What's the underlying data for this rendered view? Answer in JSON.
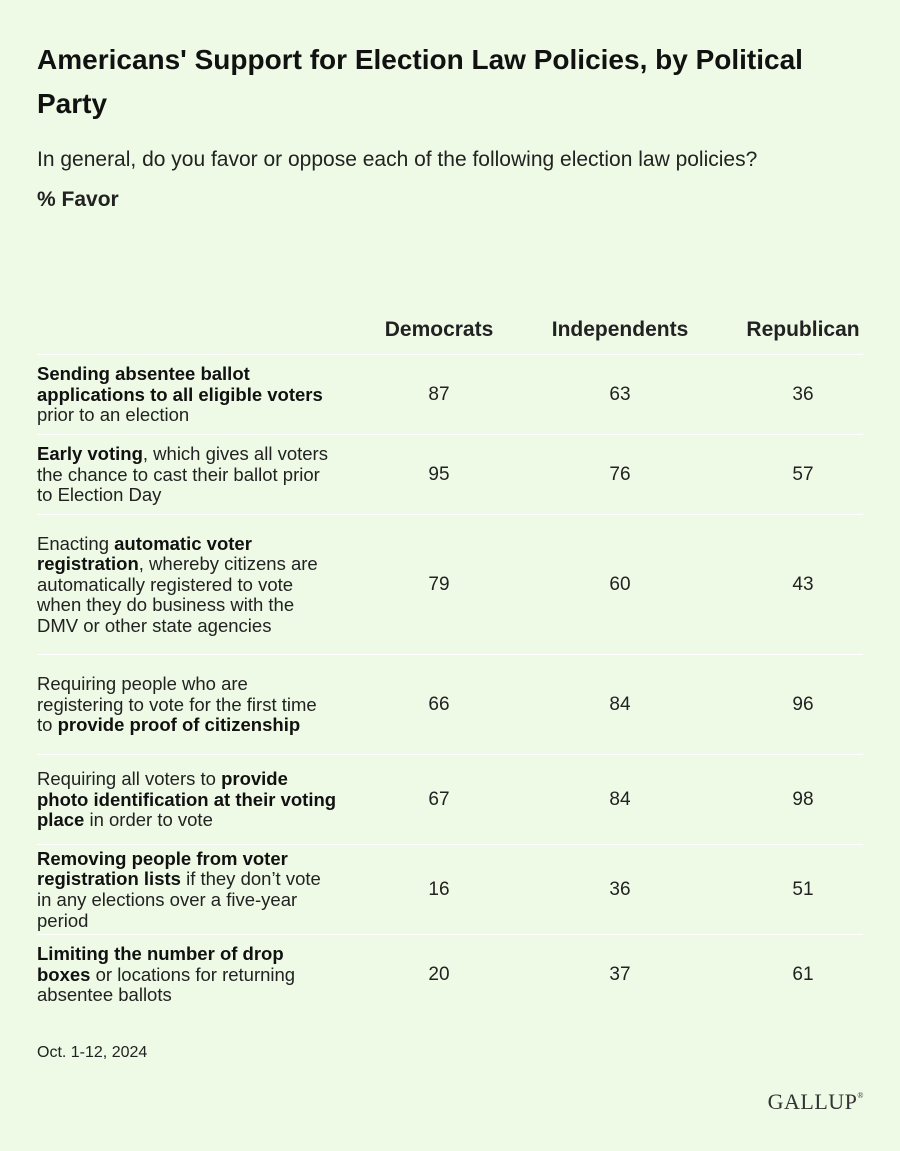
{
  "title": "Americans' Support for Election Law Policies, by Political Party",
  "subtitle": "In general, do you favor or oppose each of the following election law policies?",
  "unit_label": "% Favor",
  "footnote": "Oct. 1-12, 2024",
  "logo": "GALLUP",
  "chart_data": {
    "type": "table",
    "columns": [
      "Democrats",
      "Independents",
      "Republican"
    ],
    "rows": [
      {
        "label_parts": [
          {
            "text": "Sending absentee ballot applications to all eligible voters",
            "bold": true
          },
          {
            "text": " prior to an election",
            "bold": false
          }
        ],
        "values": [
          87,
          63,
          36
        ]
      },
      {
        "label_parts": [
          {
            "text": "Early voting",
            "bold": true
          },
          {
            "text": ", which gives all voters the chance to cast their ballot prior to Election Day",
            "bold": false
          }
        ],
        "values": [
          95,
          76,
          57
        ]
      },
      {
        "label_parts": [
          {
            "text": "Enacting ",
            "bold": false
          },
          {
            "text": "automatic voter registration",
            "bold": true
          },
          {
            "text": ", whereby citizens are automatically registered to vote when they do business with the DMV or other state agencies",
            "bold": false
          }
        ],
        "values": [
          79,
          60,
          43
        ]
      },
      {
        "label_parts": [
          {
            "text": "Requiring people who are registering to vote for the first time to ",
            "bold": false
          },
          {
            "text": "provide proof of citizenship",
            "bold": true
          }
        ],
        "values": [
          66,
          84,
          96
        ]
      },
      {
        "label_parts": [
          {
            "text": "Requiring all voters to ",
            "bold": false
          },
          {
            "text": "provide photo identification at their voting place",
            "bold": true
          },
          {
            "text": " in order to vote",
            "bold": false
          }
        ],
        "values": [
          67,
          84,
          98
        ]
      },
      {
        "label_parts": [
          {
            "text": "Removing people from voter registration lists",
            "bold": true
          },
          {
            "text": " if they don’t vote in any elections over a five-year period",
            "bold": false
          }
        ],
        "values": [
          16,
          36,
          51
        ]
      },
      {
        "label_parts": [
          {
            "text": "Limiting the number of drop boxes",
            "bold": true
          },
          {
            "text": " or locations for returning absentee ballots",
            "bold": false
          }
        ],
        "values": [
          20,
          37,
          61
        ]
      }
    ]
  }
}
